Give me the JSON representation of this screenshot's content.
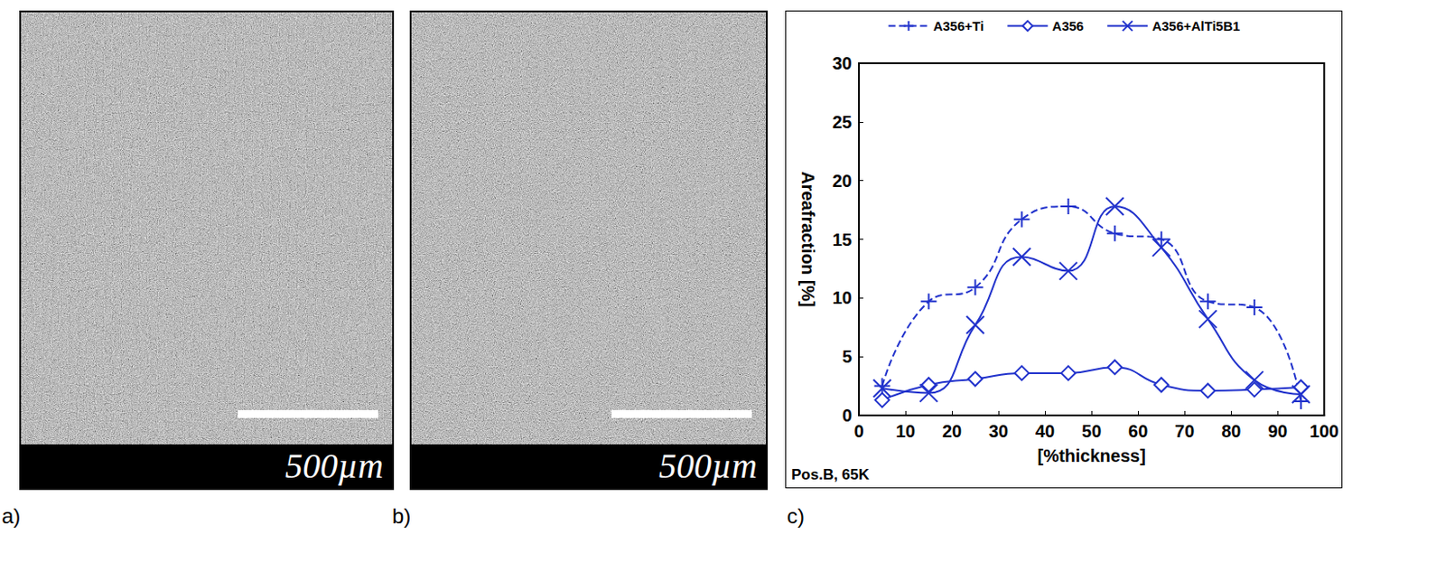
{
  "images": [
    {
      "letter": "a)",
      "scale_bar": "500µm"
    },
    {
      "letter": "b)",
      "scale_bar": "500µm"
    }
  ],
  "chart_data": {
    "type": "line",
    "panel_letter": "c)",
    "x_label": "[%thickness]",
    "y_label": "Areafraction [%]",
    "annotation": "Pos.B, 65K",
    "x": [
      5,
      15,
      25,
      35,
      45,
      55,
      65,
      75,
      85,
      95
    ],
    "series": [
      {
        "name": "A356+Ti",
        "color": "#2233cc",
        "marker": "plus",
        "line_style": "dashed",
        "values": [
          2.5,
          9.7,
          10.9,
          16.7,
          17.8,
          15.5,
          15.0,
          9.7,
          9.2,
          1.2
        ]
      },
      {
        "name": "A356",
        "color": "#2233cc",
        "marker": "diamond",
        "line_style": "solid",
        "values": [
          1.3,
          2.6,
          3.1,
          3.6,
          3.6,
          4.1,
          2.6,
          2.1,
          2.2,
          2.4
        ]
      },
      {
        "name": "A356+AlTi5B1",
        "color": "#2233cc",
        "marker": "cross",
        "line_style": "solid",
        "values": [
          2.3,
          1.9,
          7.7,
          13.5,
          12.3,
          17.8,
          14.3,
          8.2,
          3.0,
          1.8
        ]
      }
    ],
    "xlim": [
      0,
      100
    ],
    "xticks": [
      0,
      10,
      20,
      30,
      40,
      50,
      60,
      70,
      80,
      90,
      100
    ],
    "ylim": [
      0,
      30
    ],
    "yticks": [
      0,
      5,
      10,
      15,
      20,
      25,
      30
    ],
    "grid": false,
    "legend": "top"
  }
}
